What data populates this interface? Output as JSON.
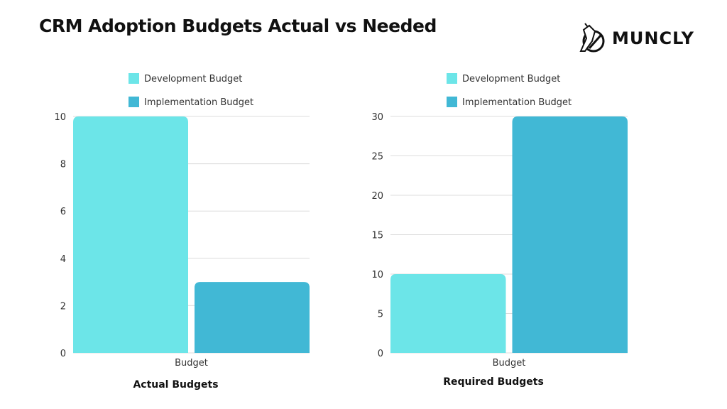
{
  "title": "CRM Adoption Budgets Actual vs Needed",
  "logo": {
    "text": "MUNCLY"
  },
  "chart_data": [
    {
      "type": "bar",
      "title": "Actual Budgets",
      "categories": [
        "Budget"
      ],
      "series": [
        {
          "name": "Development Budget",
          "color": "#6ce5e8",
          "values": [
            10
          ]
        },
        {
          "name": "Implementation Budget",
          "color": "#41b8d5",
          "values": [
            3
          ]
        }
      ],
      "ylim": [
        0,
        10
      ],
      "yticks": [
        0,
        2,
        4,
        6,
        8,
        10
      ],
      "grid": true,
      "legend": "top"
    },
    {
      "type": "bar",
      "title": "Required Budgets",
      "categories": [
        "Budget"
      ],
      "series": [
        {
          "name": "Development Budget",
          "color": "#6ce5e8",
          "values": [
            10
          ]
        },
        {
          "name": "Implementation Budget",
          "color": "#41b8d5",
          "values": [
            30
          ]
        }
      ],
      "ylim": [
        0,
        30
      ],
      "yticks": [
        0,
        5,
        10,
        15,
        20,
        25,
        30
      ],
      "grid": true,
      "legend": "top"
    }
  ]
}
